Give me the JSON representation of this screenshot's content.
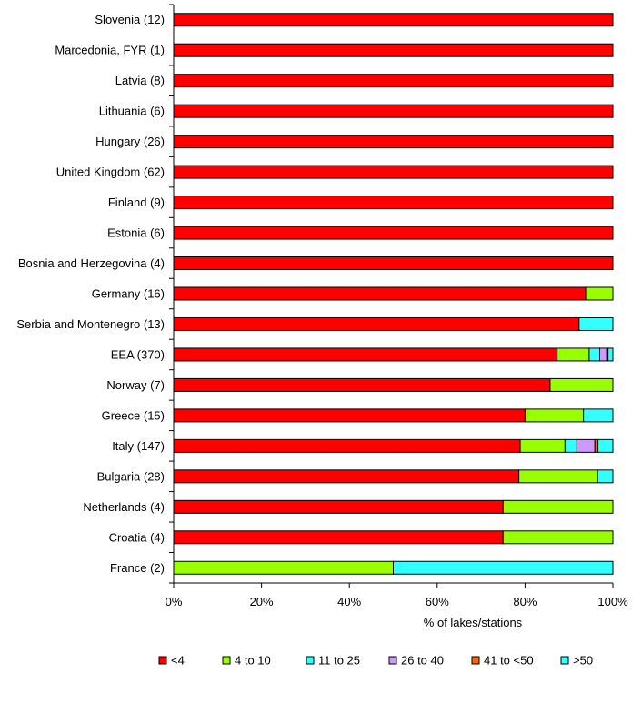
{
  "chart_data": {
    "type": "bar",
    "orientation": "horizontal",
    "stacked": true,
    "title": "",
    "xlabel": "% of lakes/stations",
    "ylabel": "",
    "xlim": [
      0,
      100
    ],
    "x_ticks": [
      "0%",
      "20%",
      "40%",
      "60%",
      "80%",
      "100%"
    ],
    "grid": false,
    "legend_position": "bottom",
    "categories": [
      "Slovenia (12)",
      "Marcedonia, FYR (1)",
      "Latvia (8)",
      "Lithuania (6)",
      "Hungary (26)",
      "United Kingdom (62)",
      "Finland (9)",
      "Estonia (6)",
      "Bosnia and Herzegovina (4)",
      "Germany (16)",
      "Serbia and Montenegro (13)",
      "EEA (370)",
      "Norway (7)",
      "Greece (15)",
      "Italy (147)",
      "Bulgaria (28)",
      "Netherlands (4)",
      "Croatia (4)",
      "France (2)"
    ],
    "series": [
      {
        "name": "<4",
        "color": "#ff0000",
        "values": [
          100,
          100,
          100,
          100,
          100,
          100,
          100,
          100,
          100,
          93.8,
          92.3,
          87.3,
          85.7,
          80.0,
          78.9,
          78.6,
          75,
          75,
          0
        ]
      },
      {
        "name": "4 to 10",
        "color": "#99ff00",
        "values": [
          0,
          0,
          0,
          0,
          0,
          0,
          0,
          0,
          0,
          6.2,
          0,
          7.3,
          14.3,
          13.3,
          10.2,
          17.9,
          25,
          25,
          50
        ]
      },
      {
        "name": "11 to 25",
        "color": "#33ffff",
        "values": [
          0,
          0,
          0,
          0,
          0,
          0,
          0,
          0,
          0,
          0,
          0,
          2.4,
          0,
          0,
          2.7,
          0,
          0,
          0,
          0
        ]
      },
      {
        "name": "26 to 40",
        "color": "#cc99ff",
        "values": [
          0,
          0,
          0,
          0,
          0,
          0,
          0,
          0,
          0,
          0,
          0,
          1.6,
          0,
          0,
          4.1,
          0,
          0,
          0,
          0
        ]
      },
      {
        "name": "41 to <50",
        "color": "#ff6600",
        "values": [
          0,
          0,
          0,
          0,
          0,
          0,
          0,
          0,
          0,
          0,
          0,
          0.3,
          0,
          0,
          0.7,
          0,
          0,
          0,
          0
        ]
      },
      {
        "name": ">50",
        "color": "#33ffff",
        "values": [
          0,
          0,
          0,
          0,
          0,
          0,
          0,
          0,
          0,
          0,
          7.7,
          1.1,
          0,
          6.7,
          3.4,
          3.5,
          0,
          0,
          50
        ]
      }
    ]
  }
}
